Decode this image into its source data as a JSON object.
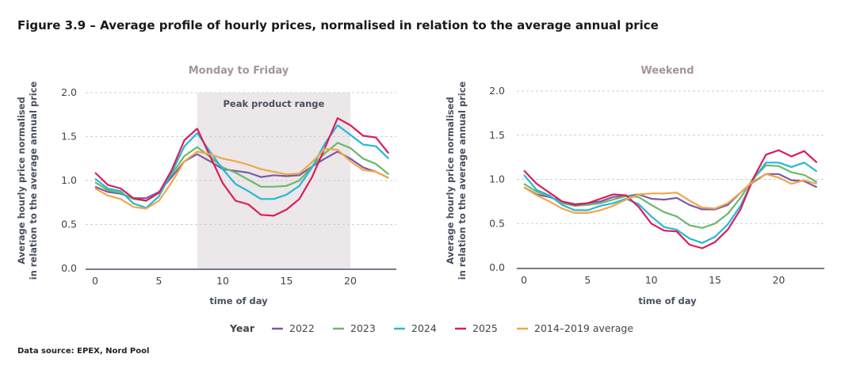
{
  "title": "Figure 3.9 – Average profile of hourly prices, normalised in relation to the average annual price",
  "source": "Data source: EPEX, Nord Pool",
  "legend": {
    "label": "Year",
    "items": [
      {
        "name": "2022",
        "color": "#7b5aa6"
      },
      {
        "name": "2023",
        "color": "#6cb86a"
      },
      {
        "name": "2024",
        "color": "#26b8d6"
      },
      {
        "name": "2025",
        "color": "#d81e5b"
      },
      {
        "name": "2014–2019 average",
        "color": "#f2a54a"
      }
    ]
  },
  "chart_data": [
    {
      "type": "line",
      "title": "Monday to Friday",
      "xlabel": "time of day",
      "ylabel": "Average hourly price normalised in relation to the average annual price",
      "xlim": [
        0,
        23
      ],
      "ylim": [
        0,
        2.0
      ],
      "xticks": [
        0,
        5,
        10,
        15,
        20
      ],
      "yticks": [
        "0.0",
        "0.5",
        "1.0",
        "1.5",
        "2.0"
      ],
      "grid": "horizontal dashed",
      "annotation": {
        "label": "Peak product range",
        "x_from": 8,
        "x_to": 20,
        "color": "#ece7e9"
      },
      "x": [
        0,
        1,
        2,
        3,
        4,
        5,
        6,
        7,
        8,
        9,
        10,
        11,
        12,
        13,
        14,
        15,
        16,
        17,
        18,
        19,
        20,
        21,
        22,
        23
      ],
      "series": [
        {
          "name": "2022",
          "values": [
            0.93,
            0.87,
            0.85,
            0.8,
            0.8,
            0.87,
            1.04,
            1.22,
            1.3,
            1.22,
            1.13,
            1.11,
            1.09,
            1.04,
            1.06,
            1.05,
            1.06,
            1.16,
            1.25,
            1.33,
            1.25,
            1.15,
            1.1,
            1.03
          ]
        },
        {
          "name": "2023",
          "values": [
            0.98,
            0.89,
            0.86,
            0.79,
            0.77,
            0.86,
            1.07,
            1.28,
            1.38,
            1.27,
            1.15,
            1.09,
            1.01,
            0.93,
            0.93,
            0.94,
            1.0,
            1.16,
            1.31,
            1.43,
            1.37,
            1.25,
            1.19,
            1.07
          ]
        },
        {
          "name": "2024",
          "values": [
            1.02,
            0.91,
            0.88,
            0.74,
            0.69,
            0.82,
            1.09,
            1.39,
            1.54,
            1.33,
            1.13,
            0.96,
            0.88,
            0.79,
            0.79,
            0.84,
            0.94,
            1.15,
            1.42,
            1.63,
            1.52,
            1.41,
            1.39,
            1.25
          ]
        },
        {
          "name": "2025",
          "values": [
            1.09,
            0.95,
            0.91,
            0.8,
            0.77,
            0.86,
            1.12,
            1.46,
            1.59,
            1.28,
            0.97,
            0.77,
            0.73,
            0.61,
            0.6,
            0.67,
            0.79,
            1.04,
            1.37,
            1.71,
            1.63,
            1.51,
            1.49,
            1.31
          ]
        },
        {
          "name": "2014–2019 average",
          "values": [
            0.91,
            0.83,
            0.79,
            0.7,
            0.68,
            0.77,
            0.98,
            1.22,
            1.33,
            1.3,
            1.25,
            1.22,
            1.18,
            1.13,
            1.1,
            1.07,
            1.08,
            1.21,
            1.36,
            1.35,
            1.22,
            1.12,
            1.1,
            1.03
          ]
        }
      ]
    },
    {
      "type": "line",
      "title": "Weekend",
      "xlabel": "time of day",
      "ylabel": "Average hourly price normalised in relation to the average annual price",
      "xlim": [
        0,
        23
      ],
      "ylim": [
        0,
        2.0
      ],
      "xticks": [
        0,
        5,
        10,
        15,
        20
      ],
      "yticks": [
        "0.0",
        "0.5",
        "1.0",
        "1.5",
        "2.0"
      ],
      "grid": "horizontal dashed",
      "x": [
        0,
        1,
        2,
        3,
        4,
        5,
        6,
        7,
        8,
        9,
        10,
        11,
        12,
        13,
        14,
        15,
        16,
        17,
        18,
        19,
        20,
        21,
        22,
        23
      ],
      "series": [
        {
          "name": "2022",
          "values": [
            0.91,
            0.83,
            0.8,
            0.75,
            0.72,
            0.73,
            0.75,
            0.8,
            0.81,
            0.83,
            0.78,
            0.77,
            0.79,
            0.71,
            0.66,
            0.66,
            0.71,
            0.85,
            0.97,
            1.06,
            1.06,
            0.99,
            0.98,
            0.91
          ]
        },
        {
          "name": "2023",
          "values": [
            0.95,
            0.86,
            0.81,
            0.73,
            0.7,
            0.71,
            0.73,
            0.77,
            0.81,
            0.8,
            0.71,
            0.63,
            0.58,
            0.48,
            0.45,
            0.5,
            0.61,
            0.79,
            1.01,
            1.16,
            1.15,
            1.08,
            1.05,
            0.97
          ]
        },
        {
          "name": "2024",
          "values": [
            1.05,
            0.88,
            0.82,
            0.71,
            0.65,
            0.65,
            0.7,
            0.73,
            0.78,
            0.72,
            0.58,
            0.46,
            0.43,
            0.33,
            0.28,
            0.35,
            0.49,
            0.7,
            1.0,
            1.19,
            1.19,
            1.14,
            1.19,
            1.09
          ]
        },
        {
          "name": "2025",
          "values": [
            1.1,
            0.95,
            0.85,
            0.75,
            0.71,
            0.73,
            0.78,
            0.83,
            0.82,
            0.69,
            0.5,
            0.42,
            0.41,
            0.26,
            0.22,
            0.29,
            0.43,
            0.66,
            1.01,
            1.28,
            1.33,
            1.26,
            1.32,
            1.19
          ]
        },
        {
          "name": "2014–2019 average",
          "values": [
            0.91,
            0.82,
            0.75,
            0.67,
            0.62,
            0.62,
            0.65,
            0.7,
            0.77,
            0.83,
            0.84,
            0.84,
            0.85,
            0.76,
            0.68,
            0.67,
            0.73,
            0.85,
            0.98,
            1.06,
            1.02,
            0.95,
            0.99,
            0.95
          ]
        }
      ]
    }
  ]
}
